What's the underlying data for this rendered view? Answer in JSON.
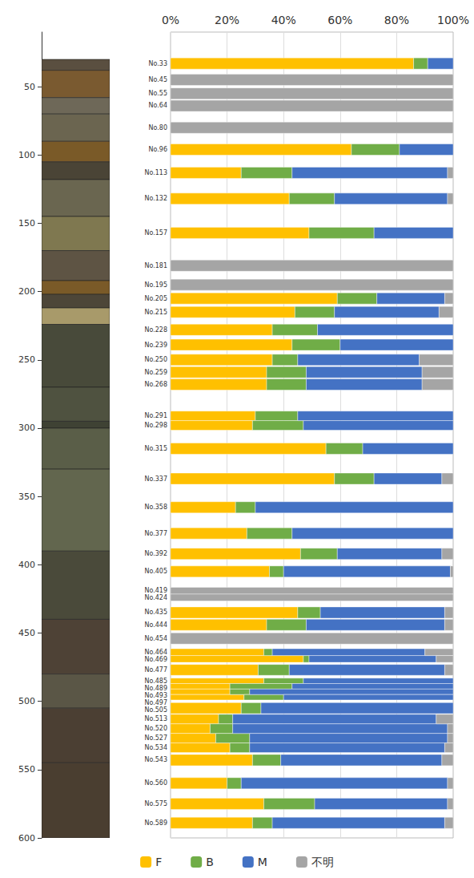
{
  "chart_data": {
    "type": "bar",
    "orientation": "horizontal",
    "stacked": true,
    "grid": true,
    "legend": "bottom",
    "categories": [
      "No.33",
      "No.45",
      "No.55",
      "No.64",
      "No.80",
      "No.96",
      "No.113",
      "No.132",
      "No.157",
      "No.181",
      "No.195",
      "No.205",
      "No.215",
      "No.228",
      "No.239",
      "No.250",
      "No.259",
      "No.268",
      "No.291",
      "No.298",
      "No.315",
      "No.337",
      "No.358",
      "No.377",
      "No.392",
      "No.405",
      "No.419",
      "No.424",
      "No.435",
      "No.444",
      "No.454",
      "No.464",
      "No.469",
      "No.477",
      "No.485",
      "No.489",
      "No.493",
      "No.497",
      "No.505",
      "No.513",
      "No.520",
      "No.527",
      "No.534",
      "No.543",
      "No.560",
      "No.575",
      "No.589"
    ],
    "depths": [
      33,
      45,
      55,
      64,
      80,
      96,
      113,
      132,
      157,
      181,
      195,
      205,
      215,
      228,
      239,
      250,
      259,
      268,
      291,
      298,
      315,
      337,
      358,
      377,
      392,
      405,
      419,
      424,
      435,
      444,
      454,
      464,
      469,
      477,
      485,
      489,
      493,
      497,
      505,
      513,
      520,
      527,
      534,
      543,
      560,
      575,
      589
    ],
    "series": [
      {
        "name": "F",
        "color": "#FFC000",
        "values": [
          86,
          0,
          0,
          0,
          0,
          64,
          25,
          42,
          49,
          0,
          0,
          59,
          44,
          36,
          43,
          36,
          34,
          34,
          30,
          29,
          55,
          58,
          23,
          27,
          46,
          35,
          0,
          0,
          45,
          34,
          0,
          33,
          47,
          31,
          33,
          21,
          21,
          26,
          25,
          17,
          14,
          16,
          21,
          29,
          20,
          33,
          29
        ]
      },
      {
        "name": "B",
        "color": "#70AD47",
        "values": [
          5,
          0,
          0,
          0,
          0,
          17,
          18,
          16,
          23,
          0,
          0,
          14,
          14,
          16,
          17,
          9,
          14,
          14,
          15,
          18,
          13,
          14,
          7,
          16,
          13,
          5,
          0,
          0,
          8,
          14,
          0,
          3,
          2,
          11,
          14,
          22,
          7,
          14,
          7,
          5,
          8,
          12,
          7,
          10,
          5,
          18,
          7
        ]
      },
      {
        "name": "M",
        "color": "#4472C4",
        "values": [
          9,
          0,
          0,
          0,
          0,
          19,
          55,
          40,
          28,
          0,
          0,
          24,
          37,
          48,
          40,
          43,
          41,
          41,
          55,
          53,
          32,
          24,
          70,
          57,
          37,
          59,
          0,
          0,
          44,
          49,
          0,
          54,
          45,
          55,
          53,
          57,
          72,
          60,
          68,
          72,
          76,
          70,
          69,
          57,
          73,
          47,
          61
        ]
      },
      {
        "name": "不明",
        "color": "#A5A5A5",
        "values": [
          0,
          100,
          100,
          100,
          100,
          0,
          2,
          2,
          0,
          100,
          100,
          3,
          5,
          0,
          0,
          12,
          11,
          11,
          0,
          0,
          0,
          4,
          0,
          0,
          4,
          1,
          100,
          100,
          3,
          3,
          100,
          10,
          6,
          3,
          0,
          0,
          0,
          0,
          0,
          6,
          2,
          2,
          3,
          4,
          2,
          2,
          3
        ]
      }
    ],
    "xlim": [
      0,
      100
    ],
    "xticks": [
      {
        "value": 0,
        "label": "0%"
      },
      {
        "value": 20,
        "label": "20%"
      },
      {
        "value": 40,
        "label": "40%"
      },
      {
        "value": 60,
        "label": "60%"
      },
      {
        "value": 80,
        "label": "80%"
      },
      {
        "value": 100,
        "label": "100%"
      }
    ],
    "ylim": [
      10,
      600
    ],
    "yticks": [
      50,
      100,
      150,
      200,
      250,
      300,
      350,
      400,
      450,
      500,
      550,
      600
    ],
    "column_layers": {
      "top": [
        30,
        38,
        58,
        70,
        90,
        105,
        118,
        145,
        170,
        192,
        202,
        212,
        224,
        270,
        295,
        300,
        330,
        390,
        440,
        480,
        505,
        545
      ],
      "bottom": [
        38,
        58,
        70,
        90,
        105,
        118,
        145,
        170,
        192,
        202,
        212,
        224,
        270,
        295,
        300,
        330,
        390,
        440,
        480,
        505,
        545,
        600
      ],
      "colors": [
        "#5a4f40",
        "#7a5a30",
        "#6e6858",
        "#6b6550",
        "#7a5a28",
        "#4a4436",
        "#6a6650",
        "#7f7850",
        "#5e5444",
        "#7a5a28",
        "#4d4638",
        "#a89a6a",
        "#484a3a",
        "#4f5240",
        "#3f4234",
        "#5a5e48",
        "#62664e",
        "#4a4a3a",
        "#4e4236",
        "#5a5646",
        "#4b3f33",
        "#4a3e30"
      ]
    }
  }
}
